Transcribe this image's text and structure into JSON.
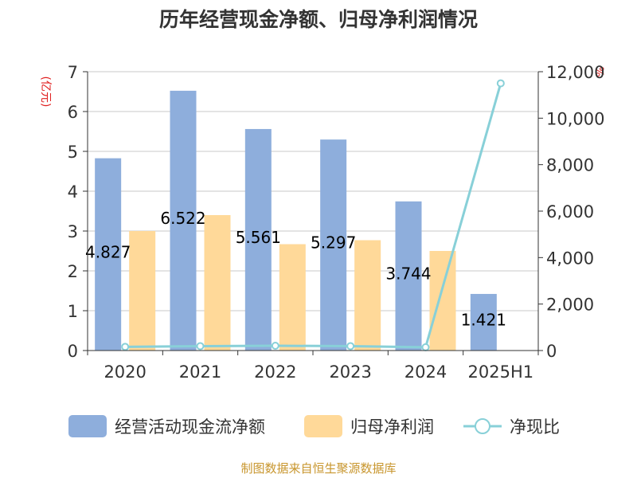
{
  "title": "历年经营现金净额、归母净利润情况",
  "source": "制图数据来自恒生聚源数据库",
  "chart_data": {
    "type": "bar",
    "categories": [
      "2020",
      "2021",
      "2022",
      "2023",
      "2024",
      "2025H1"
    ],
    "left_axis": {
      "unit": "(亿元)",
      "ylim": [
        0,
        7
      ],
      "ticks": [
        "0",
        "1",
        "2",
        "3",
        "4",
        "5",
        "6",
        "7"
      ]
    },
    "right_axis": {
      "unit": "%",
      "ylim": [
        0,
        12000
      ],
      "ticks": [
        "0",
        "2,000",
        "4,000",
        "6,000",
        "8,000",
        "10,000",
        "12,000"
      ]
    },
    "grid": true,
    "legend_position": "bottom",
    "series": [
      {
        "name": "经营活动现金流净额",
        "type": "bar",
        "axis": "left",
        "color": "#8eaedc",
        "values": [
          4.827,
          6.522,
          5.561,
          5.297,
          3.744,
          1.421
        ],
        "labels": [
          "4.827",
          "6.522",
          "5.561",
          "5.297",
          "3.744",
          "1.421"
        ]
      },
      {
        "name": "归母净利润",
        "type": "bar",
        "axis": "left",
        "color": "#ffd999",
        "values": [
          3.0,
          3.4,
          2.67,
          2.77,
          2.5,
          0.01
        ]
      },
      {
        "name": "净现比",
        "type": "line",
        "axis": "right",
        "color": "#88d0d8",
        "values": [
          160,
          190,
          205,
          190,
          140,
          11500
        ]
      }
    ]
  }
}
